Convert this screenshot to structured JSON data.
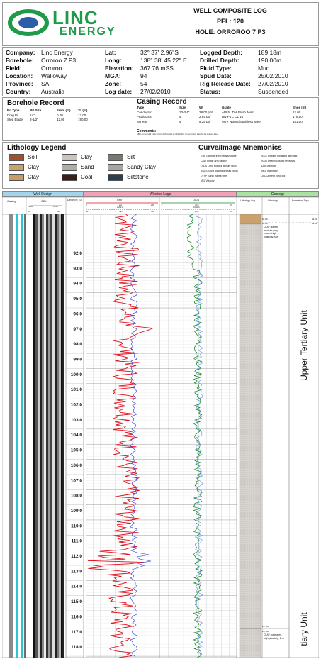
{
  "logo": {
    "brand_top": "LINC",
    "brand_bottom": "ENERGY"
  },
  "title": {
    "line1": "WELL COMPOSITE LOG",
    "line2": "PEL: 120",
    "line3": "HOLE: ORROROO 7 P3"
  },
  "info": {
    "left": [
      {
        "k": "Company:",
        "v": "Linc Energy"
      },
      {
        "k": "Borehole:",
        "v": "Orroroo 7 P3"
      },
      {
        "k": "Field:",
        "v": "Orroroo"
      },
      {
        "k": "Location:",
        "v": "Walloway"
      },
      {
        "k": "Province:",
        "v": "SA"
      },
      {
        "k": "Country:",
        "v": "Australia"
      }
    ],
    "mid": [
      {
        "k": "Lat:",
        "v": "32° 37' 2.96\"S"
      },
      {
        "k": "Long:",
        "v": "138° 38' 45.22\" E"
      },
      {
        "k": "Elevation:",
        "v": "367.76 mSS"
      },
      {
        "k": "MGA:",
        "v": "94"
      },
      {
        "k": "Zone:",
        "v": "54"
      },
      {
        "k": "Log date:",
        "v": "27/02/2010"
      }
    ],
    "right": [
      {
        "k": "Logged Depth:",
        "v": "189.18m"
      },
      {
        "k": "Drilled Depth:",
        "v": "190.00m"
      },
      {
        "k": "Fluid Type:",
        "v": "Mud"
      },
      {
        "k": "Spud Date:",
        "v": "25/02/2010"
      },
      {
        "k": "Rig Release Date:",
        "v": "27/02/2010"
      },
      {
        "k": "Status:",
        "v": "Suspended"
      }
    ]
  },
  "borehole_record": {
    "title": "Borehole Record",
    "headers": [
      "Bit Type",
      "Bit Size",
      "From (m)",
      "To (m)"
    ],
    "rows": [
      [
        "Drag Bit",
        "14\"",
        "0.00",
        "12.00"
      ],
      [
        "Step Blade",
        "8-1/2\"",
        "12.00",
        "190.00"
      ]
    ]
  },
  "casing_record": {
    "title": "Casing Record",
    "headers": [
      "Type",
      "Size",
      "Wt",
      "Grade",
      "Shoe (m)"
    ],
    "rows": [
      [
        "Conductor",
        "10-3/4\"",
        "28.00 ppf",
        "API 5L DM Flush Joint",
        "12.00"
      ],
      [
        "Production",
        "4\"",
        "2.95 ppf",
        "DN PVC CL 16",
        "178.00"
      ],
      [
        "Screen",
        "4\"",
        "5.25 ppf",
        "Wire Wound Stainless Steel",
        "181.00"
      ]
    ],
    "comments_label": "Comments:",
    "comments": "CBL Log recorded inside 100mm PVC casing on 03/05/2010. No perforation data. No log analysis data."
  },
  "lithology_legend": {
    "title": "Lithology Legend",
    "items": [
      {
        "label": "Soil",
        "color": "#a0522d"
      },
      {
        "label": "Clay",
        "color": "#c9a26d"
      },
      {
        "label": "Clay",
        "color": "#c79c66"
      },
      {
        "label": "Clay",
        "color": "#c9c4bc"
      },
      {
        "label": "Sand",
        "color": "#b0aca7"
      },
      {
        "label": "Coal",
        "color": "#3a2016"
      },
      {
        "label": "Silt",
        "color": "#7a7773"
      },
      {
        "label": "Sandy Clay",
        "color": "#a9a5a0"
      },
      {
        "label": "Siltstone",
        "color": "#2f3e4a"
      }
    ]
  },
  "mnemonics": {
    "title": "Curve/Image Mnemonics",
    "col1": [
      "GRn   Gamma from density probe",
      "CALI   Single arm caliper",
      "LSDS   Long spaced density (g/cc)",
      "SSDS   Short spaced density (g/cc)",
      "DTPP   Sonic transit time",
      "VEL   Velocity"
    ],
    "col2": [
      "RLLS   Shallow focussed laterolog",
      "RLLD   Deep focussed resistivity",
      "AZIM   Azimuth",
      "INCL   Inclination",
      "CBL   Cement bond log"
    ]
  },
  "track_headers": {
    "well_design": "Well Design",
    "wireline_logs": "Wireline Logs",
    "geology": "Geology",
    "casing": "Casing",
    "cbl": "CBL",
    "depth": "Depth (m TD)",
    "gr": "GRn",
    "gr_unit": "api",
    "gr_left": "0",
    "gr_right": "200",
    "cali": "CALI",
    "cali_unit": "mm",
    "cali_left": "50",
    "cali_right": "400",
    "lsds": "LSDS",
    "lsds_unit": "g/cc",
    "lsds_left": "1",
    "lsds_right": "3",
    "ssds": "SSDS",
    "ssds_unit": "g/cc",
    "ssds_left": "1",
    "ssds_right": "3",
    "cbl_left": "0",
    "cbl_right": "100",
    "cbl_l2": "-200",
    "cbl_r2": "1200",
    "lith_log": "Lithology Log",
    "lithology": "Lithology",
    "formation": "Formation Tops"
  },
  "depths": [
    "92.0",
    "93.0",
    "94.0",
    "95.0",
    "96.0",
    "97.0",
    "98.0",
    "99.0",
    "100.0",
    "101.0",
    "102.0",
    "103.0",
    "104.0",
    "105.0",
    "106.0",
    "107.0",
    "108.0",
    "109.0",
    "110.0",
    "111.0",
    "112.0",
    "113.0",
    "114.0",
    "115.0",
    "116.0",
    "117.0",
    "118.0"
  ],
  "geology": {
    "top1": "92.00",
    "top1b": "92.00",
    "desc1": "CLAY: light to medium grey-brown, high plasticity, soft",
    "right_top": "92.00",
    "right_top2": "92.00",
    "top2": "117.00",
    "top2b": "117.00",
    "desc2": "CLAY: pale grey, high plasticity, firm",
    "formation": "Upper Tertiary Unit",
    "formation2": "tiary Unit"
  }
}
